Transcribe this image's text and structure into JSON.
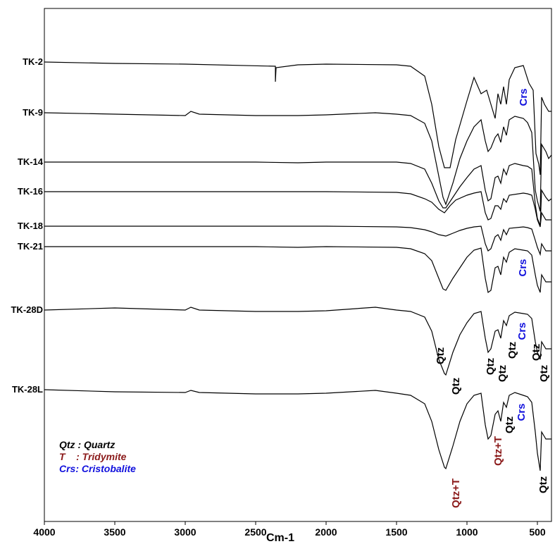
{
  "colors": {
    "qtz": "#000000",
    "tridymite": "#8b1a1a",
    "cristobalite": "#1010dd",
    "line": "#000000"
  },
  "legend": [
    {
      "text": "Qtz : Quartz",
      "color_key": "qtz"
    },
    {
      "text": "T    : Tridymite",
      "color_key": "tridymite"
    },
    {
      "text": "Crs: Cristobalite",
      "color_key": "cristobalite"
    }
  ],
  "peak_labels": [
    {
      "text": "Crs",
      "color_key": "cristobalite"
    },
    {
      "text": "Crs",
      "color_key": "cristobalite"
    },
    {
      "text": "Qtz",
      "color_key": "qtz"
    },
    {
      "text": "Qtz",
      "color_key": "qtz"
    },
    {
      "text": "Qtz",
      "color_key": "qtz"
    },
    {
      "text": "Qtz",
      "color_key": "qtz"
    },
    {
      "text": "Qtz",
      "color_key": "qtz"
    },
    {
      "text": "Crs",
      "color_key": "cristobalite"
    },
    {
      "text": "Qtz",
      "color_key": "qtz"
    },
    {
      "text": "Qtz",
      "color_key": "qtz"
    },
    {
      "text": "Qtz+T",
      "color_key": "tridymite"
    },
    {
      "text": "Qtz+T",
      "color_key": "tridymite"
    },
    {
      "text": "Qtz",
      "color_key": "qtz"
    },
    {
      "text": "Crs",
      "color_key": "cristobalite"
    },
    {
      "text": "Qtz",
      "color_key": "qtz"
    }
  ],
  "chart_data": {
    "type": "line",
    "xlabel": "Cm-1",
    "ylabel": "",
    "xlim": [
      4000,
      400
    ],
    "x_reversed": true,
    "x_ticks": [
      4000,
      3500,
      3000,
      2500,
      2000,
      1500,
      1000,
      500
    ],
    "grid": false,
    "series": [
      {
        "name": "TK-2",
        "points": [
          [
            4000,
            0
          ],
          [
            3500,
            -2
          ],
          [
            3000,
            -3
          ],
          [
            2360,
            -6
          ],
          [
            2360,
            -28
          ],
          [
            2355,
            -8
          ],
          [
            2200,
            -4
          ],
          [
            2000,
            -3
          ],
          [
            1500,
            -4
          ],
          [
            1400,
            -6
          ],
          [
            1300,
            -20
          ],
          [
            1250,
            -60
          ],
          [
            1200,
            -120
          ],
          [
            1160,
            -150
          ],
          [
            1120,
            -150
          ],
          [
            1080,
            -110
          ],
          [
            1000,
            -55
          ],
          [
            950,
            -22
          ],
          [
            900,
            -45
          ],
          [
            860,
            -40
          ],
          [
            800,
            -80
          ],
          [
            780,
            -45
          ],
          [
            760,
            -60
          ],
          [
            740,
            -35
          ],
          [
            720,
            -60
          ],
          [
            700,
            -25
          ],
          [
            660,
            -8
          ],
          [
            600,
            -5
          ],
          [
            560,
            -30
          ],
          [
            530,
            -40
          ],
          [
            510,
            -130
          ],
          [
            490,
            -145
          ],
          [
            480,
            -160
          ],
          [
            470,
            -50
          ],
          [
            450,
            -60
          ],
          [
            420,
            -70
          ],
          [
            400,
            -70
          ]
        ]
      },
      {
        "name": "TK-9",
        "points": [
          [
            4000,
            0
          ],
          [
            3500,
            -2
          ],
          [
            3000,
            -4
          ],
          [
            2960,
            2
          ],
          [
            2900,
            -2
          ],
          [
            2500,
            -4
          ],
          [
            2200,
            -4
          ],
          [
            2000,
            -3
          ],
          [
            1650,
            0
          ],
          [
            1500,
            -2
          ],
          [
            1400,
            -4
          ],
          [
            1300,
            -15
          ],
          [
            1250,
            -40
          ],
          [
            1200,
            -90
          ],
          [
            1170,
            -120
          ],
          [
            1150,
            -130
          ],
          [
            1100,
            -100
          ],
          [
            1050,
            -65
          ],
          [
            1000,
            -40
          ],
          [
            950,
            -20
          ],
          [
            900,
            -10
          ],
          [
            870,
            -40
          ],
          [
            850,
            -55
          ],
          [
            830,
            -50
          ],
          [
            800,
            -35
          ],
          [
            780,
            -30
          ],
          [
            760,
            -42
          ],
          [
            740,
            -20
          ],
          [
            720,
            -32
          ],
          [
            700,
            -10
          ],
          [
            660,
            -5
          ],
          [
            600,
            -8
          ],
          [
            570,
            -14
          ],
          [
            540,
            -28
          ],
          [
            515,
            -110
          ],
          [
            500,
            -125
          ],
          [
            480,
            -140
          ],
          [
            470,
            -45
          ],
          [
            440,
            -55
          ],
          [
            420,
            -65
          ],
          [
            400,
            -60
          ]
        ]
      },
      {
        "name": "TK-14",
        "points": [
          [
            4000,
            0
          ],
          [
            3500,
            0
          ],
          [
            3000,
            0
          ],
          [
            2500,
            0
          ],
          [
            2200,
            -1
          ],
          [
            2000,
            0
          ],
          [
            1500,
            0
          ],
          [
            1400,
            -2
          ],
          [
            1300,
            -10
          ],
          [
            1250,
            -30
          ],
          [
            1200,
            -55
          ],
          [
            1170,
            -65
          ],
          [
            1150,
            -65
          ],
          [
            1100,
            -50
          ],
          [
            1050,
            -35
          ],
          [
            1000,
            -22
          ],
          [
            950,
            -10
          ],
          [
            900,
            -5
          ],
          [
            870,
            -40
          ],
          [
            850,
            -55
          ],
          [
            830,
            -52
          ],
          [
            800,
            -22
          ],
          [
            780,
            -20
          ],
          [
            760,
            -30
          ],
          [
            740,
            -10
          ],
          [
            720,
            -18
          ],
          [
            700,
            -5
          ],
          [
            660,
            -2
          ],
          [
            600,
            -5
          ],
          [
            570,
            -6
          ],
          [
            540,
            -10
          ],
          [
            515,
            -60
          ],
          [
            500,
            -80
          ],
          [
            480,
            -90
          ],
          [
            470,
            -40
          ],
          [
            440,
            -50
          ],
          [
            420,
            -55
          ],
          [
            400,
            -52
          ]
        ]
      },
      {
        "name": "TK-16",
        "points": [
          [
            4000,
            0
          ],
          [
            3500,
            0
          ],
          [
            3000,
            0
          ],
          [
            2500,
            0
          ],
          [
            2000,
            0
          ],
          [
            1500,
            -1
          ],
          [
            1400,
            -3
          ],
          [
            1300,
            -10
          ],
          [
            1250,
            -15
          ],
          [
            1200,
            -25
          ],
          [
            1160,
            -30
          ],
          [
            1120,
            -20
          ],
          [
            1080,
            -12
          ],
          [
            1000,
            -5
          ],
          [
            950,
            -2
          ],
          [
            900,
            0
          ],
          [
            870,
            -30
          ],
          [
            850,
            -40
          ],
          [
            830,
            -38
          ],
          [
            800,
            -20
          ],
          [
            780,
            -20
          ],
          [
            760,
            -25
          ],
          [
            740,
            -10
          ],
          [
            720,
            -15
          ],
          [
            700,
            -5
          ],
          [
            600,
            -2
          ],
          [
            570,
            -3
          ],
          [
            540,
            -5
          ],
          [
            515,
            -25
          ],
          [
            500,
            -40
          ],
          [
            480,
            -50
          ],
          [
            470,
            -30
          ],
          [
            440,
            -40
          ],
          [
            400,
            -40
          ]
        ]
      },
      {
        "name": "TK-18",
        "points": [
          [
            4000,
            0
          ],
          [
            3500,
            0
          ],
          [
            3000,
            0
          ],
          [
            2500,
            0
          ],
          [
            2000,
            0
          ],
          [
            1500,
            -1
          ],
          [
            1400,
            -2
          ],
          [
            1300,
            -5
          ],
          [
            1250,
            -8
          ],
          [
            1200,
            -12
          ],
          [
            1150,
            -14
          ],
          [
            1100,
            -10
          ],
          [
            1050,
            -6
          ],
          [
            1000,
            -3
          ],
          [
            950,
            -1
          ],
          [
            900,
            0
          ],
          [
            870,
            -25
          ],
          [
            850,
            -35
          ],
          [
            830,
            -32
          ],
          [
            800,
            -15
          ],
          [
            780,
            -12
          ],
          [
            760,
            -20
          ],
          [
            740,
            -5
          ],
          [
            720,
            -12
          ],
          [
            700,
            -3
          ],
          [
            600,
            -1
          ],
          [
            570,
            -2
          ],
          [
            540,
            -4
          ],
          [
            515,
            -20
          ],
          [
            500,
            -30
          ],
          [
            480,
            -40
          ],
          [
            470,
            -25
          ],
          [
            440,
            -35
          ],
          [
            400,
            -35
          ]
        ]
      },
      {
        "name": "TK-21",
        "points": [
          [
            4000,
            0
          ],
          [
            3500,
            0
          ],
          [
            3000,
            0
          ],
          [
            2500,
            0
          ],
          [
            2200,
            -1
          ],
          [
            2000,
            0
          ],
          [
            1500,
            -1
          ],
          [
            1400,
            -3
          ],
          [
            1300,
            -10
          ],
          [
            1250,
            -20
          ],
          [
            1200,
            -45
          ],
          [
            1170,
            -60
          ],
          [
            1150,
            -62
          ],
          [
            1100,
            -45
          ],
          [
            1050,
            -30
          ],
          [
            1000,
            -15
          ],
          [
            950,
            -5
          ],
          [
            900,
            -2
          ],
          [
            870,
            -45
          ],
          [
            850,
            -65
          ],
          [
            830,
            -62
          ],
          [
            800,
            -30
          ],
          [
            780,
            -28
          ],
          [
            760,
            -40
          ],
          [
            740,
            -15
          ],
          [
            720,
            -22
          ],
          [
            700,
            -8
          ],
          [
            660,
            -3
          ],
          [
            600,
            -5
          ],
          [
            570,
            -6
          ],
          [
            540,
            -12
          ],
          [
            515,
            -40
          ],
          [
            500,
            -55
          ],
          [
            480,
            -65
          ],
          [
            470,
            -40
          ],
          [
            440,
            -50
          ],
          [
            400,
            -50
          ]
        ]
      },
      {
        "name": "TK-28D",
        "points": [
          [
            4000,
            0
          ],
          [
            3500,
            3
          ],
          [
            3000,
            0
          ],
          [
            2960,
            4
          ],
          [
            2900,
            0
          ],
          [
            2500,
            -2
          ],
          [
            2200,
            -2
          ],
          [
            2000,
            -1
          ],
          [
            1650,
            4
          ],
          [
            1500,
            0
          ],
          [
            1400,
            -2
          ],
          [
            1300,
            -10
          ],
          [
            1250,
            -30
          ],
          [
            1200,
            -70
          ],
          [
            1160,
            -90
          ],
          [
            1150,
            -92
          ],
          [
            1100,
            -60
          ],
          [
            1050,
            -35
          ],
          [
            1000,
            -18
          ],
          [
            950,
            -5
          ],
          [
            900,
            -2
          ],
          [
            870,
            -40
          ],
          [
            850,
            -60
          ],
          [
            830,
            -55
          ],
          [
            800,
            -30
          ],
          [
            780,
            -28
          ],
          [
            760,
            -40
          ],
          [
            740,
            -15
          ],
          [
            720,
            -22
          ],
          [
            700,
            -8
          ],
          [
            660,
            -3
          ],
          [
            600,
            -5
          ],
          [
            570,
            -6
          ],
          [
            540,
            -12
          ],
          [
            515,
            -45
          ],
          [
            500,
            -60
          ],
          [
            480,
            -70
          ],
          [
            470,
            -45
          ],
          [
            440,
            -55
          ],
          [
            400,
            -55
          ]
        ]
      },
      {
        "name": "TK-28L",
        "points": [
          [
            4000,
            0
          ],
          [
            3500,
            -3
          ],
          [
            3000,
            -4
          ],
          [
            2960,
            -1
          ],
          [
            2900,
            -4
          ],
          [
            2500,
            -6
          ],
          [
            2200,
            -6
          ],
          [
            2000,
            -5
          ],
          [
            1650,
            -1
          ],
          [
            1500,
            -5
          ],
          [
            1400,
            -8
          ],
          [
            1300,
            -20
          ],
          [
            1250,
            -45
          ],
          [
            1200,
            -85
          ],
          [
            1160,
            -110
          ],
          [
            1150,
            -112
          ],
          [
            1100,
            -80
          ],
          [
            1050,
            -45
          ],
          [
            1000,
            -20
          ],
          [
            950,
            -8
          ],
          [
            900,
            -5
          ],
          [
            870,
            -50
          ],
          [
            850,
            -70
          ],
          [
            830,
            -65
          ],
          [
            800,
            -35
          ],
          [
            780,
            -30
          ],
          [
            760,
            -45
          ],
          [
            740,
            -18
          ],
          [
            720,
            -25
          ],
          [
            700,
            -8
          ],
          [
            660,
            -4
          ],
          [
            600,
            -8
          ],
          [
            570,
            -10
          ],
          [
            540,
            -18
          ],
          [
            515,
            -60
          ],
          [
            500,
            -90
          ],
          [
            480,
            -115
          ],
          [
            470,
            -60
          ],
          [
            440,
            -70
          ],
          [
            400,
            -70
          ]
        ]
      }
    ]
  }
}
